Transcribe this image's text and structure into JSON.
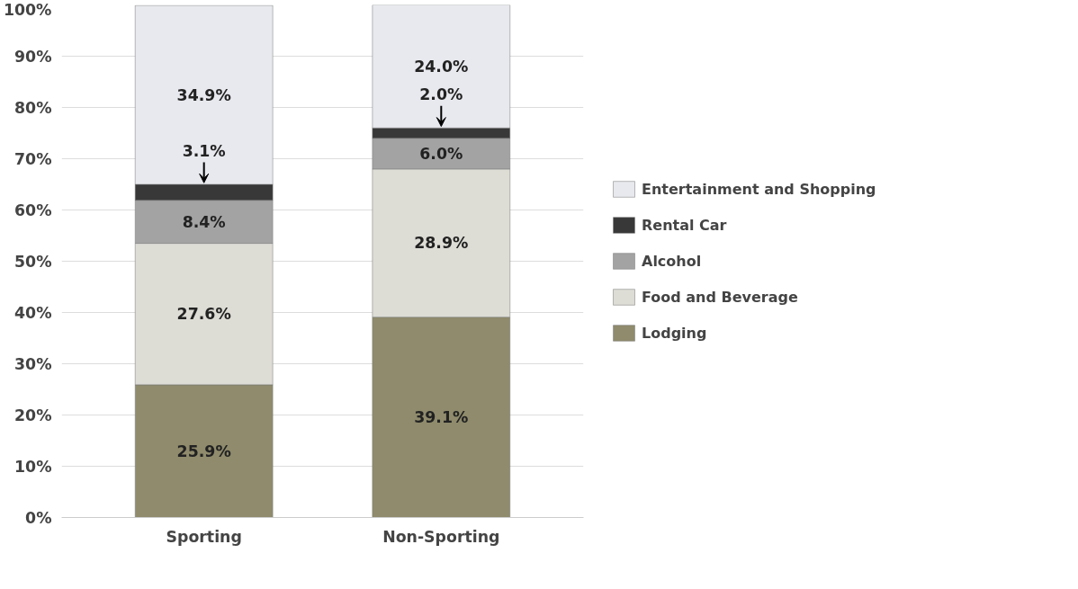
{
  "chart_data": {
    "type": "bar",
    "stacked": true,
    "categories": [
      "Sporting",
      "Non-Sporting"
    ],
    "series": [
      {
        "name": "Lodging",
        "color": "#8f8b6c",
        "values": [
          25.9,
          39.1
        ],
        "value_labels": [
          "25.9%",
          "39.1%"
        ]
      },
      {
        "name": "Food and Beverage",
        "color": "#dddcd5",
        "values": [
          27.6,
          28.9
        ],
        "value_labels": [
          "27.6%",
          "28.9%"
        ]
      },
      {
        "name": "Alcohol",
        "color": "#a3a3a3",
        "values": [
          8.4,
          6.0
        ],
        "value_labels": [
          "8.4%",
          "6.0%"
        ]
      },
      {
        "name": "Rental Car",
        "color": "#383838",
        "values": [
          3.1,
          2.0
        ],
        "value_labels": [
          "3.1%",
          "2.0%"
        ]
      },
      {
        "name": "Entertainment and Shopping",
        "color": "#e8e9ee",
        "values": [
          34.9,
          24.0
        ],
        "value_labels": [
          "34.9%",
          "24.0%"
        ]
      }
    ],
    "ylim": [
      0,
      100
    ],
    "yticks": [
      {
        "value": 0,
        "label": "0%"
      },
      {
        "value": 10,
        "label": "10%"
      },
      {
        "value": 20,
        "label": "20%"
      },
      {
        "value": 30,
        "label": "30%"
      },
      {
        "value": 40,
        "label": "40%"
      },
      {
        "value": 50,
        "label": "50%"
      },
      {
        "value": 60,
        "label": "60%"
      },
      {
        "value": 70,
        "label": "70%"
      },
      {
        "value": 80,
        "label": "80%"
      },
      {
        "value": 90,
        "label": "90%"
      },
      {
        "value": 100,
        "label": "100%"
      }
    ],
    "grid": "y",
    "legend": "right"
  }
}
